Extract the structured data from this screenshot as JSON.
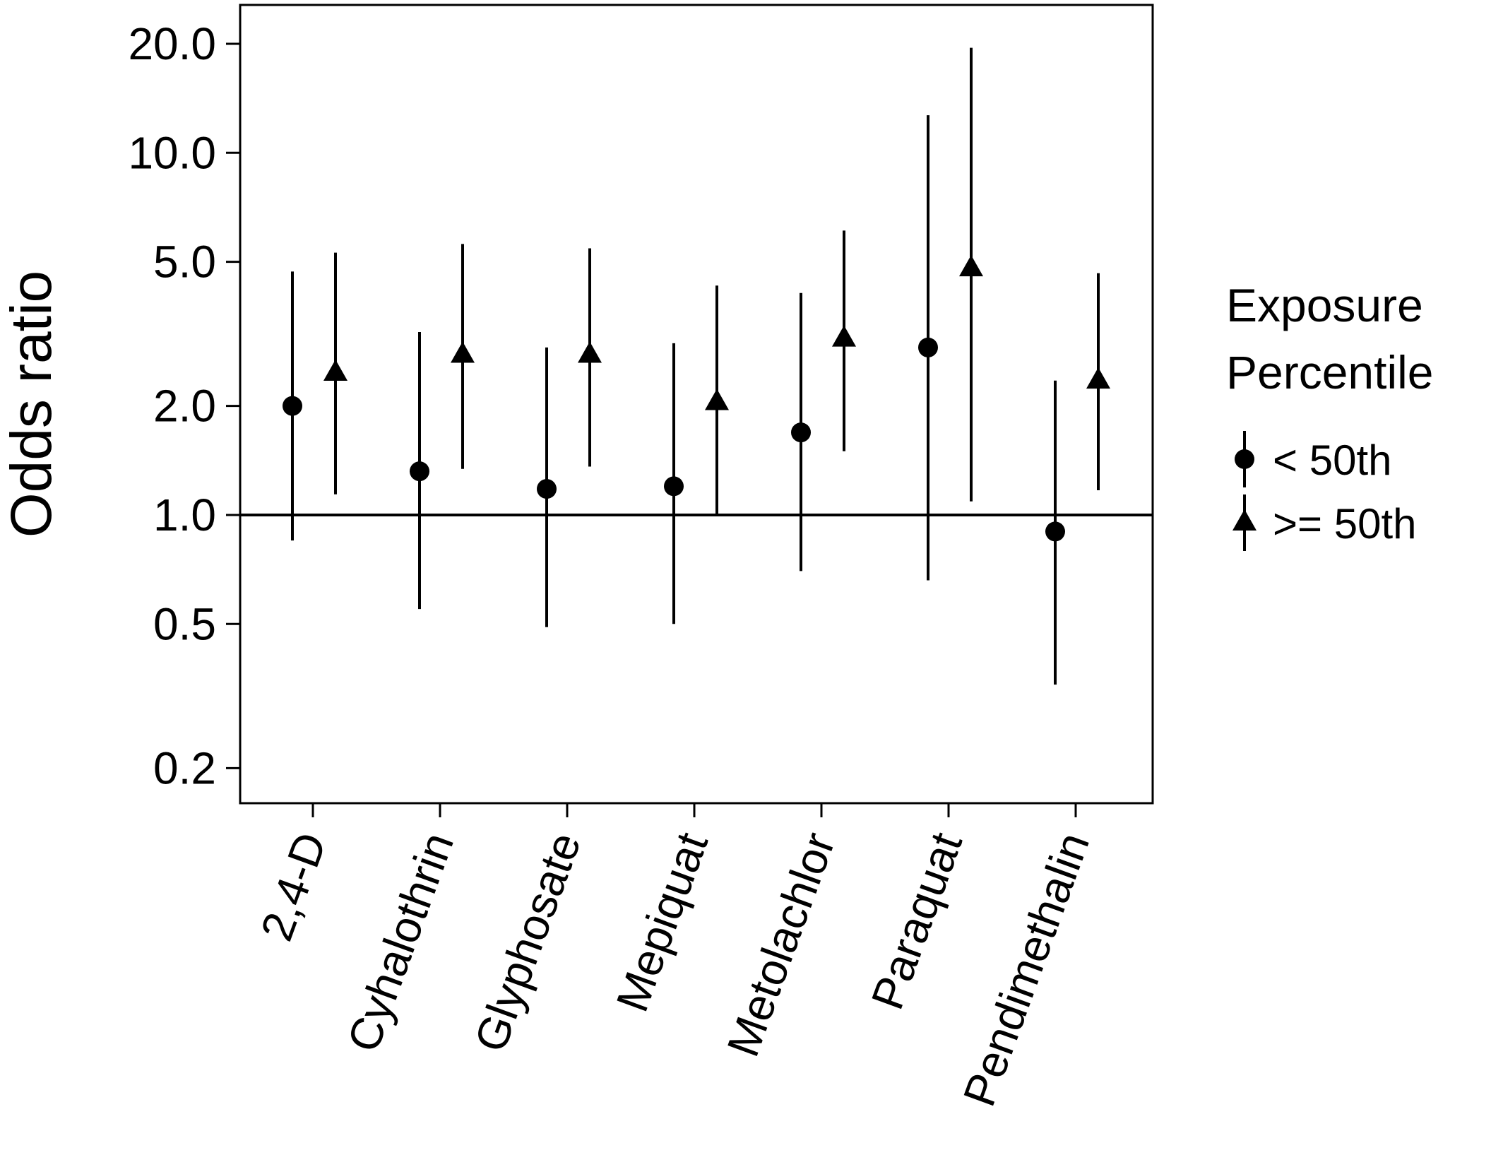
{
  "chart_data": {
    "type": "scatter",
    "title": "",
    "ylabel": "Odds ratio",
    "xlabel": "",
    "yscale": "log",
    "ylim": [
      0.16,
      25.6
    ],
    "yticks": [
      0.2,
      0.5,
      1.0,
      2.0,
      5.0,
      10.0,
      20.0
    ],
    "ytick_labels": [
      "0.2",
      "0.5",
      "1.0",
      "2.0",
      "5.0",
      "10.0",
      "20.0"
    ],
    "reference_line": 1.0,
    "grid": false,
    "categories": [
      "2,4-D",
      "Cyhalothrin",
      "Glyphosate",
      "Mepiquat",
      "Metolachlor",
      "Paraquat",
      "Pendimethalin"
    ],
    "legend": {
      "title_lines": [
        "Exposure",
        "Percentile"
      ],
      "position": "right"
    },
    "series": [
      {
        "name": "< 50th",
        "marker": "circle",
        "color": "#000000",
        "estimates": [
          2.0,
          1.32,
          1.18,
          1.2,
          1.69,
          2.9,
          0.9
        ],
        "lower": [
          0.85,
          0.55,
          0.49,
          0.5,
          0.7,
          0.66,
          0.34
        ],
        "upper": [
          4.7,
          3.2,
          2.9,
          2.98,
          4.1,
          12.7,
          2.35
        ]
      },
      {
        "name": ">= 50th",
        "marker": "triangle",
        "color": "#000000",
        "estimates": [
          2.47,
          2.77,
          2.77,
          2.05,
          3.07,
          4.8,
          2.35
        ],
        "lower": [
          1.14,
          1.34,
          1.36,
          1.0,
          1.5,
          1.09,
          1.17
        ],
        "upper": [
          5.3,
          5.6,
          5.45,
          4.3,
          6.1,
          19.5,
          4.65
        ]
      }
    ]
  }
}
